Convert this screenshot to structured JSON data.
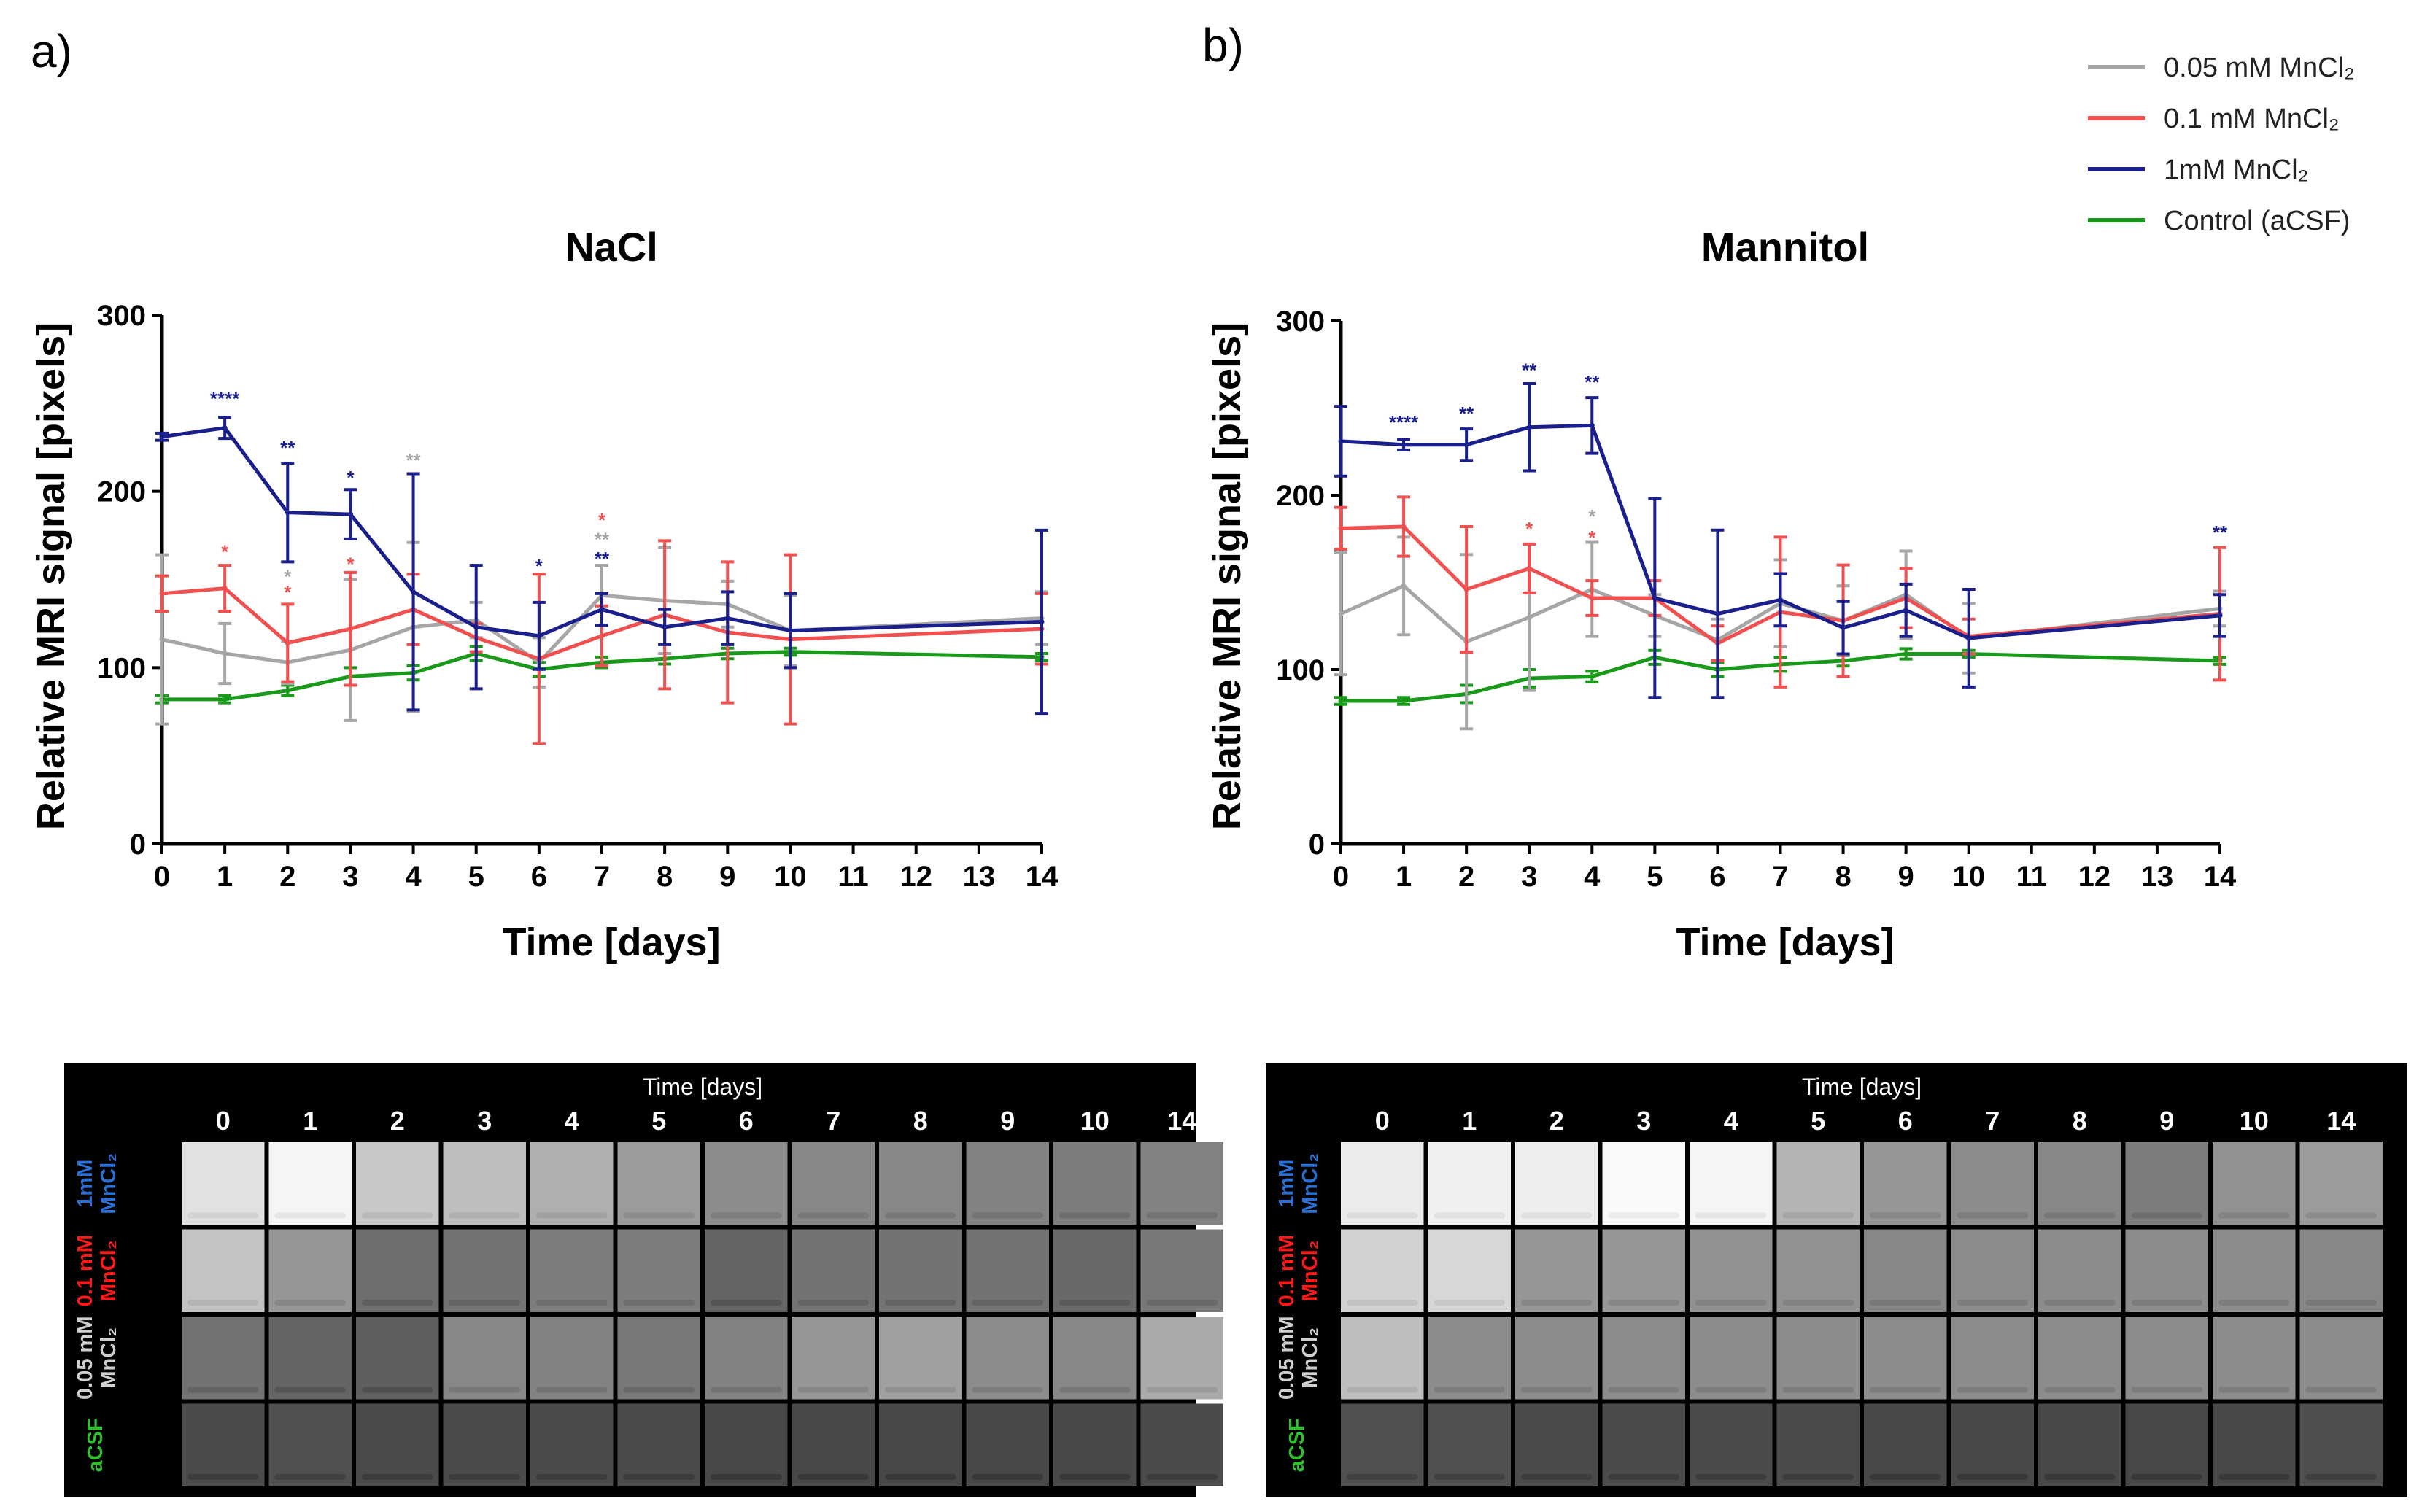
{
  "colors": {
    "gray": "#a6a6a6",
    "red": "#f05050",
    "blue": "#1a1f8c",
    "green": "#1a9a1a",
    "gridBg": "#000000",
    "rowBlue": "#2a6fd4",
    "rowRed": "#ff1a1a",
    "rowGray": "#cfcfcf",
    "rowGreen": "#2fbf2f"
  },
  "legend": {
    "items": [
      {
        "label": "0.05 mM MnCl₂",
        "color": "#a6a6a6"
      },
      {
        "label": "0.1 mM MnCl₂",
        "color": "#f05050"
      },
      {
        "label": "1mM MnCl₂",
        "color": "#1a1f8c"
      },
      {
        "label": "Control (aCSF)",
        "color": "#1a9a1a"
      }
    ]
  },
  "chart_data": [
    {
      "panel": "a)",
      "type": "line",
      "title": "NaCl",
      "xlabel": "Time [days]",
      "ylabel": "Relative MRI signal [pixels]",
      "x_ticks": [
        0,
        1,
        2,
        3,
        4,
        5,
        6,
        7,
        8,
        9,
        10,
        11,
        12,
        13,
        14
      ],
      "y_ticks": [
        0,
        100,
        200,
        300
      ],
      "xlim": [
        0,
        14
      ],
      "ylim": [
        0,
        300
      ],
      "x": [
        0,
        1,
        2,
        3,
        4,
        5,
        6,
        7,
        8,
        9,
        10,
        14
      ],
      "series": [
        {
          "name": "Control (aCSF)",
          "color": "#1a9a1a",
          "values": [
            82,
            82,
            87,
            95,
            97,
            108,
            99,
            103,
            105,
            108,
            109,
            106
          ],
          "err": [
            2,
            2,
            3,
            5,
            4,
            4,
            4,
            3,
            3,
            3,
            2,
            2
          ]
        },
        {
          "name": "0.05 mM MnCl₂",
          "color": "#a6a6a6",
          "values": [
            116,
            108,
            103,
            110,
            123,
            127,
            103,
            141,
            138,
            136,
            121,
            128
          ],
          "err": [
            48,
            17,
            12,
            40,
            48,
            10,
            14,
            17,
            30,
            13,
            20,
            15
          ]
        },
        {
          "name": "0.1 mM MnCl₂",
          "color": "#f05050",
          "values": [
            142,
            145,
            114,
            122,
            133,
            117,
            105,
            118,
            130,
            120,
            116,
            122
          ],
          "err": [
            10,
            13,
            22,
            32,
            20,
            8,
            48,
            17,
            42,
            40,
            48,
            20
          ]
        },
        {
          "name": "1mM MnCl₂",
          "color": "#1a1f8c",
          "values": [
            231,
            236,
            188,
            187,
            143,
            123,
            118,
            133,
            123,
            128,
            121,
            126
          ],
          "err": [
            2,
            6,
            28,
            14,
            67,
            35,
            19,
            9,
            10,
            15,
            21,
            52
          ]
        }
      ],
      "annotations": [
        {
          "x": 1,
          "y": 249,
          "text": "****",
          "color": "#1a1f8c"
        },
        {
          "x": 2,
          "y": 221,
          "text": "**",
          "color": "#1a1f8c"
        },
        {
          "x": 3,
          "y": 204,
          "text": "*",
          "color": "#1a1f8c"
        },
        {
          "x": 4,
          "y": 214,
          "text": "**",
          "color": "#a6a6a6"
        },
        {
          "x": 1,
          "y": 162,
          "text": "*",
          "color": "#f05050"
        },
        {
          "x": 2,
          "y": 148,
          "text": "*",
          "color": "#a6a6a6"
        },
        {
          "x": 2,
          "y": 139,
          "text": "*",
          "color": "#f05050"
        },
        {
          "x": 3,
          "y": 155,
          "text": "*",
          "color": "#f05050"
        },
        {
          "x": 6,
          "y": 154,
          "text": "*",
          "color": "#1a1f8c"
        },
        {
          "x": 7,
          "y": 180,
          "text": "*",
          "color": "#f05050"
        },
        {
          "x": 7,
          "y": 169,
          "text": "**",
          "color": "#a6a6a6"
        },
        {
          "x": 7,
          "y": 158,
          "text": "**",
          "color": "#1a1f8c"
        }
      ]
    },
    {
      "panel": "b)",
      "type": "line",
      "title": "Mannitol",
      "xlabel": "Time [days]",
      "ylabel": "Relative MRI signal [pixels]",
      "x_ticks": [
        0,
        1,
        2,
        3,
        4,
        5,
        6,
        7,
        8,
        9,
        10,
        11,
        12,
        13,
        14
      ],
      "y_ticks": [
        0,
        100,
        200,
        300
      ],
      "xlim": [
        0,
        14
      ],
      "ylim": [
        0,
        300
      ],
      "x": [
        0,
        1,
        2,
        3,
        4,
        5,
        6,
        7,
        8,
        9,
        10,
        14
      ],
      "series": [
        {
          "name": "Control (aCSF)",
          "color": "#1a9a1a",
          "values": [
            82,
            82,
            86,
            95,
            96,
            107,
            100,
            103,
            105,
            109,
            109,
            105
          ],
          "err": [
            2,
            2,
            5,
            5,
            3,
            4,
            4,
            4,
            3,
            3,
            2,
            2
          ]
        },
        {
          "name": "0.05 mM MnCl₂",
          "color": "#a6a6a6",
          "values": [
            132,
            148,
            116,
            130,
            146,
            131,
            117,
            138,
            128,
            143,
            118,
            135
          ],
          "err": [
            35,
            28,
            50,
            42,
            27,
            12,
            12,
            25,
            20,
            25,
            20,
            10
          ]
        },
        {
          "name": "0.1 mM MnCl₂",
          "color": "#f05050",
          "values": [
            181,
            182,
            146,
            158,
            141,
            141,
            115,
            133,
            128,
            141,
            119,
            132
          ],
          "err": [
            12,
            17,
            36,
            14,
            10,
            10,
            10,
            43,
            32,
            17,
            10,
            38
          ]
        },
        {
          "name": "1mM MnCl₂",
          "color": "#1a1f8c",
          "values": [
            231,
            229,
            229,
            239,
            240,
            141,
            132,
            140,
            124,
            134,
            118,
            131
          ],
          "err": [
            20,
            3,
            9,
            25,
            16,
            57,
            48,
            15,
            15,
            15,
            28,
            12
          ]
        }
      ],
      "annotations": [
        {
          "x": 1,
          "y": 238,
          "text": "****",
          "color": "#1a1f8c"
        },
        {
          "x": 2,
          "y": 243,
          "text": "**",
          "color": "#1a1f8c"
        },
        {
          "x": 3,
          "y": 268,
          "text": "**",
          "color": "#1a1f8c"
        },
        {
          "x": 4,
          "y": 261,
          "text": "**",
          "color": "#1a1f8c"
        },
        {
          "x": 3,
          "y": 177,
          "text": "*",
          "color": "#f05050"
        },
        {
          "x": 4,
          "y": 184,
          "text": "*",
          "color": "#a6a6a6"
        },
        {
          "x": 4,
          "y": 172,
          "text": "*",
          "color": "#f05050"
        },
        {
          "x": 14,
          "y": 175,
          "text": "**",
          "color": "#1a1f8c"
        }
      ]
    }
  ],
  "image_grids": [
    {
      "title": "Time [days]",
      "days": [
        "0",
        "1",
        "2",
        "3",
        "4",
        "5",
        "6",
        "7",
        "8",
        "9",
        "10",
        "14"
      ],
      "rows": [
        {
          "line1": "1mM",
          "line2": "MnCl₂",
          "color": "#2a6fd4",
          "tiles": [
            225,
            245,
            200,
            190,
            175,
            155,
            140,
            135,
            135,
            130,
            125,
            130
          ]
        },
        {
          "line1": "0.1 mM",
          "line2": "MnCl₂",
          "color": "#ff1a1a",
          "tiles": [
            195,
            150,
            110,
            115,
            125,
            125,
            100,
            115,
            115,
            115,
            105,
            120
          ]
        },
        {
          "line1": "0.05 mM",
          "line2": "MnCl₂",
          "color": "#cfcfcf",
          "tiles": [
            115,
            100,
            95,
            135,
            130,
            120,
            130,
            150,
            160,
            140,
            135,
            170
          ]
        },
        {
          "line1": "aCSF",
          "line2": "",
          "color": "#2fbf2f",
          "tiles": [
            75,
            80,
            75,
            75,
            75,
            75,
            72,
            72,
            72,
            72,
            72,
            75
          ]
        }
      ]
    },
    {
      "title": "Time [days]",
      "days": [
        "0",
        "1",
        "2",
        "3",
        "4",
        "5",
        "6",
        "7",
        "8",
        "9",
        "10",
        "14"
      ],
      "rows": [
        {
          "line1": "1mM",
          "line2": "MnCl₂",
          "color": "#2a6fd4",
          "tiles": [
            235,
            240,
            238,
            250,
            245,
            180,
            150,
            140,
            135,
            125,
            145,
            155
          ]
        },
        {
          "line1": "0.1 mM",
          "line2": "MnCl₂",
          "color": "#ff1a1a",
          "tiles": [
            210,
            215,
            150,
            150,
            145,
            145,
            135,
            140,
            140,
            140,
            140,
            135
          ]
        },
        {
          "line1": "0.05 mM",
          "line2": "MnCl₂",
          "color": "#cfcfcf",
          "tiles": [
            190,
            140,
            140,
            140,
            140,
            140,
            140,
            140,
            140,
            140,
            140,
            140
          ]
        },
        {
          "line1": "aCSF",
          "line2": "",
          "color": "#2fbf2f",
          "tiles": [
            80,
            80,
            75,
            75,
            75,
            75,
            72,
            72,
            72,
            72,
            72,
            78
          ]
        }
      ]
    }
  ]
}
